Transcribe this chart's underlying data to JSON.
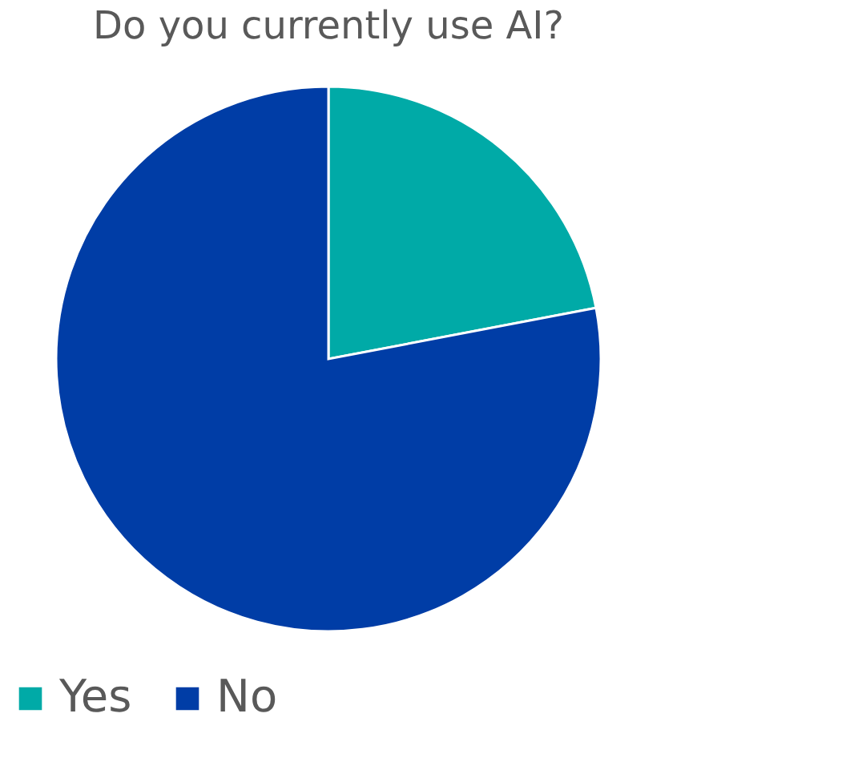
{
  "chart_data": {
    "type": "pie",
    "title": "Do you currently use AI?",
    "categories": [
      "Yes",
      "No"
    ],
    "values": [
      22,
      78
    ],
    "colors": [
      "#00aaa7",
      "#003da6"
    ],
    "legend": "bottom"
  }
}
